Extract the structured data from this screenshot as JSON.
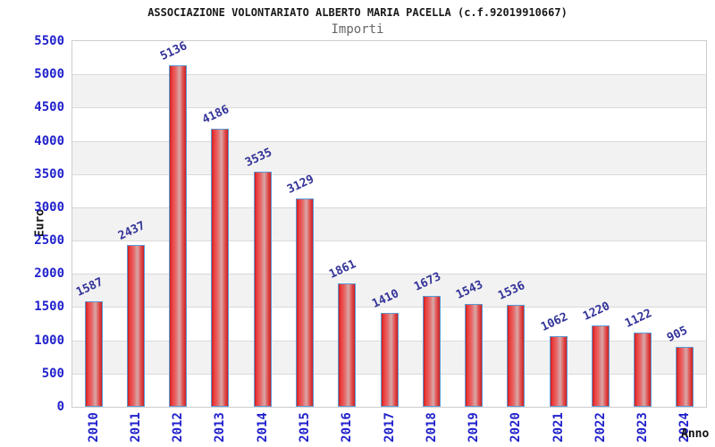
{
  "chart_data": {
    "type": "bar",
    "title": "ASSOCIAZIONE VOLONTARIATO ALBERTO MARIA PACELLA (c.f.92019910667)",
    "subtitle": "Importi",
    "xlabel": "Anno",
    "ylabel": "Euro",
    "categories": [
      "2010",
      "2011",
      "2012",
      "2013",
      "2014",
      "2015",
      "2016",
      "2017",
      "2018",
      "2019",
      "2020",
      "2021",
      "2022",
      "2023",
      "2024"
    ],
    "values": [
      1587,
      2437,
      5136,
      4186,
      3535,
      3129,
      1861,
      1410,
      1673,
      1543,
      1536,
      1062,
      1220,
      1122,
      905
    ],
    "ylim": [
      0,
      5500
    ],
    "ytick_step": 500,
    "grid": true,
    "legend": false,
    "background_bands": "alternating white and light gray every 500",
    "colors": {
      "bar_fill_edge": "#cc1f1f",
      "bar_fill_highlight": "#d8a8a8",
      "bar_border": "#5b9bd5",
      "axis_tick_label": "#2222cc",
      "value_label": "#333399",
      "band_gray": "#f2f2f2",
      "grid_line": "#d9d9d9",
      "plot_border": "#cccccc",
      "title": "#1a1a1a",
      "subtitle": "#666666"
    }
  }
}
